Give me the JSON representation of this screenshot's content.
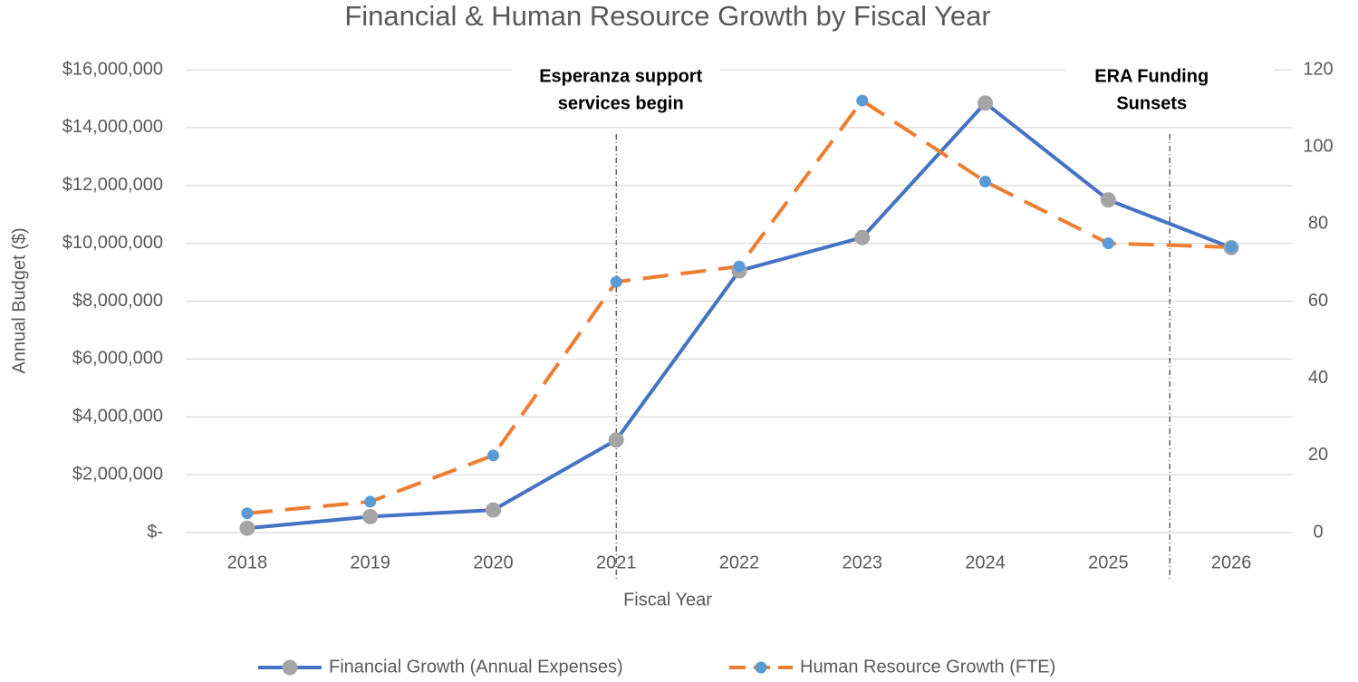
{
  "chart_data": {
    "type": "line",
    "title": "Financial & Human Resource Growth by Fiscal Year",
    "xlabel": "Fiscal Year",
    "ylabel": "Annual Budget ($)",
    "categories": [
      "2018",
      "2019",
      "2020",
      "2021",
      "2022",
      "2023",
      "2024",
      "2025",
      "2026"
    ],
    "series": [
      {
        "name": "Financial Growth (Annual Expenses)",
        "color": "#4472c4",
        "marker_color": "#a5a5a5",
        "dash": "solid",
        "axis": "y",
        "values": [
          150000,
          550000,
          780000,
          3200000,
          9050000,
          10200000,
          14850000,
          11500000,
          9850000
        ]
      },
      {
        "name": "Human Resource Growth (FTE)",
        "color": "#ed7d31",
        "marker_color": "#5b9bd5",
        "dash": "dashed",
        "axis": "y2",
        "values": [
          5,
          8,
          20,
          65,
          69,
          112,
          91,
          75,
          74
        ]
      }
    ],
    "ylim": [
      0,
      16000000
    ],
    "yticks": [
      {
        "value": 0,
        "label": "$-"
      },
      {
        "value": 2000000,
        "label": "$2,000,000"
      },
      {
        "value": 4000000,
        "label": "$4,000,000"
      },
      {
        "value": 6000000,
        "label": "$6,000,000"
      },
      {
        "value": 8000000,
        "label": "$8,000,000"
      },
      {
        "value": 10000000,
        "label": "$10,000,000"
      },
      {
        "value": 12000000,
        "label": "$12,000,000"
      },
      {
        "value": 14000000,
        "label": "$14,000,000"
      },
      {
        "value": 16000000,
        "label": "$16,000,000"
      }
    ],
    "y2lim": [
      0,
      120
    ],
    "y2ticks": [
      0,
      20,
      40,
      60,
      80,
      100,
      120
    ],
    "grid": true,
    "legend": "bottom",
    "annotations": [
      {
        "lines": [
          "Esperanza support",
          "services begin"
        ],
        "x": 2021
      },
      {
        "lines": [
          "ERA Funding",
          "Sunsets"
        ],
        "x": 2025.5
      }
    ]
  }
}
